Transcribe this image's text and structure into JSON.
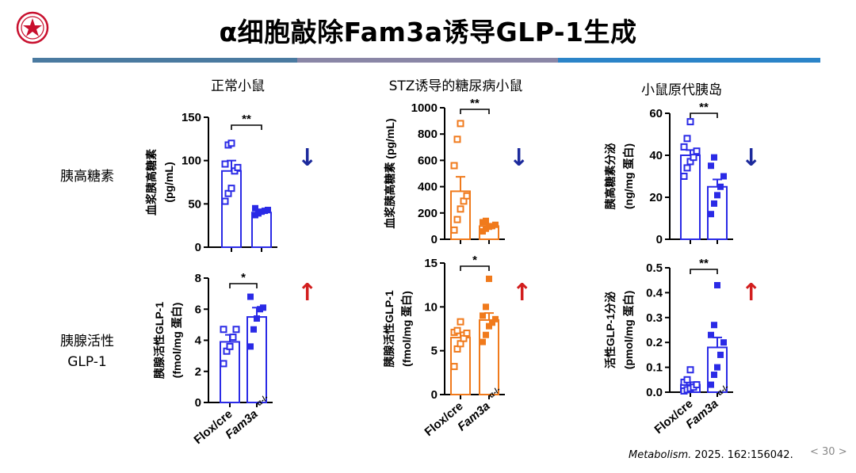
{
  "title": "α细胞敲除Fam3a诱导GLP-1生成",
  "columns": [
    "正常小鼠",
    "STZ诱导的糖尿病小鼠",
    "小鼠原代胰岛"
  ],
  "rows": [
    {
      "label": "胰高糖素"
    },
    {
      "label": "胰腺活性",
      "label2": "GLP-1"
    }
  ],
  "arrows": {
    "down": "↓",
    "up": "↑"
  },
  "xtick": {
    "control": "Flox/cre",
    "ko": "Fam3a",
    "ko_sup": "α-/-"
  },
  "citation": {
    "journal": "Metabolism.",
    "rest": " 2025. 162:156042."
  },
  "page_number": "< 30 >",
  "colors": {
    "blue": "#2a2ae6",
    "orange": "#f07a1c",
    "down_arrow": "#1c2a9c",
    "up_arrow": "#d21e1e",
    "bar_seg1": "#4a7aa0",
    "bar_seg2": "#8a86a6",
    "bar_seg3": "#2b84c8",
    "logo": "#c8102e"
  },
  "chart_data": [
    {
      "type": "bar",
      "categories": [
        "Flox/cre",
        "Fam3a α-/-"
      ],
      "color": "blue",
      "ylabel": [
        "血浆胰高糖素",
        "(pg/mL)"
      ],
      "ylim": [
        0,
        150
      ],
      "ticks": [
        0,
        50,
        100,
        150
      ],
      "values": [
        88,
        40
      ],
      "errors": [
        12,
        3
      ],
      "points": [
        [
          53,
          62,
          68,
          88,
          92,
          96,
          118,
          120
        ],
        [
          37,
          39,
          41,
          42,
          43,
          45
        ]
      ],
      "significance": "**"
    },
    {
      "type": "bar",
      "categories": [
        "Flox/cre",
        "Fam3a α-/-"
      ],
      "color": "blue",
      "ylabel": [
        "胰腺活性GLP-1",
        "(fmol/mg 蛋白)"
      ],
      "ylim": [
        0,
        8
      ],
      "ticks": [
        0,
        2,
        4,
        6,
        8
      ],
      "values": [
        3.9,
        5.5
      ],
      "errors": [
        0.45,
        0.6
      ],
      "points": [
        [
          2.5,
          3.3,
          3.6,
          4.2,
          4.7,
          4.7
        ],
        [
          3.6,
          4.7,
          5.4,
          6,
          6.1,
          6.8
        ]
      ],
      "significance": "*"
    },
    {
      "type": "bar",
      "categories": [
        "Flox/cre",
        "Fam3a α-/-"
      ],
      "color": "orange",
      "ylabel": [
        "血浆胰高糖素 (pg/mL)"
      ],
      "ylim": [
        0,
        1000
      ],
      "ticks": [
        0,
        200,
        400,
        600,
        800,
        1000
      ],
      "values": [
        365,
        100
      ],
      "errors": [
        110,
        15
      ],
      "points": [
        [
          70,
          150,
          230,
          290,
          330,
          560,
          760,
          880
        ],
        [
          60,
          80,
          95,
          100,
          110,
          130,
          140
        ]
      ],
      "significance": "**"
    },
    {
      "type": "bar",
      "categories": [
        "Flox/cre",
        "Fam3a α-/-"
      ],
      "color": "orange",
      "ylabel": [
        "胰腺活性GLP-1",
        "(fmol/mg 蛋白)"
      ],
      "ylim": [
        0,
        15
      ],
      "ticks": [
        0,
        5,
        10,
        15
      ],
      "values": [
        6.5,
        8.5
      ],
      "errors": [
        0.6,
        0.8
      ],
      "points": [
        [
          3.2,
          5.2,
          5.8,
          6.4,
          7,
          7.1,
          7.3,
          8.3
        ],
        [
          6,
          6.8,
          7.8,
          8.2,
          8.6,
          9,
          10,
          13.2
        ]
      ],
      "significance": "*"
    },
    {
      "type": "bar",
      "categories": [
        "Flox/cre",
        "Fam3a α-/-"
      ],
      "color": "blue",
      "ylabel": [
        "胰高糖素分泌",
        "(ng/mg 蛋白)"
      ],
      "ylim": [
        0,
        60
      ],
      "ticks": [
        0,
        20,
        40,
        60
      ],
      "values": [
        40,
        25
      ],
      "errors": [
        2.5,
        3.5
      ],
      "points": [
        [
          30,
          34,
          37,
          39,
          42,
          44,
          48,
          56
        ],
        [
          12,
          17,
          21,
          25,
          30,
          35,
          39
        ]
      ],
      "significance": "**"
    },
    {
      "type": "bar",
      "categories": [
        "Flox/cre",
        "Fam3a α-/-"
      ],
      "color": "blue",
      "ylabel": [
        "活性GLP-1分泌",
        "(pmol/mg 蛋白)"
      ],
      "ylim": [
        0,
        0.5
      ],
      "ticks": [
        0,
        0.1,
        0.2,
        0.3,
        0.4,
        0.5
      ],
      "tick_decimals": 1,
      "values": [
        0.03,
        0.18
      ],
      "errors": [
        0.01,
        0.04
      ],
      "points": [
        [
          0.005,
          0.01,
          0.015,
          0.02,
          0.03,
          0.04,
          0.05,
          0.09
        ],
        [
          0.03,
          0.07,
          0.1,
          0.15,
          0.2,
          0.23,
          0.27,
          0.43
        ]
      ],
      "significance": "**"
    }
  ]
}
